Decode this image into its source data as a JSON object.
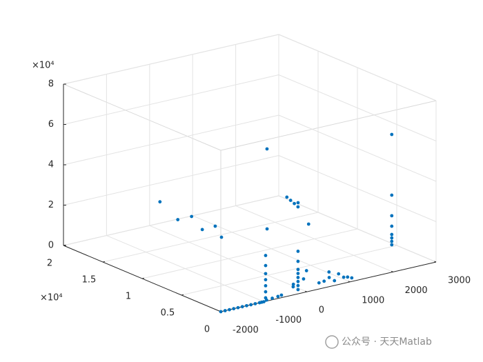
{
  "chart_data": {
    "type": "scatter3d",
    "color": "#0072bd",
    "grid": true,
    "xlim": [
      -2000,
      3000
    ],
    "xticks": [
      -2000,
      -1000,
      0,
      1000,
      2000,
      3000
    ],
    "ylim": [
      0,
      20000
    ],
    "yticks": [
      {
        "value": 0,
        "label": "0"
      },
      {
        "value": 5000,
        "label": "0.5"
      },
      {
        "value": 10000,
        "label": "1"
      },
      {
        "value": 15000,
        "label": "1.5"
      },
      {
        "value": 20000,
        "label": "2"
      }
    ],
    "y_exponent_label": "×10⁴",
    "zlim": [
      0,
      80000
    ],
    "zticks": [
      {
        "value": 0,
        "label": "0"
      },
      {
        "value": 20000,
        "label": "2"
      },
      {
        "value": 40000,
        "label": "4"
      },
      {
        "value": 60000,
        "label": "6"
      },
      {
        "value": 80000,
        "label": "8"
      }
    ],
    "z_exponent_label": "×10⁴",
    "x": [
      -2000,
      -1900,
      -1800,
      -1700,
      -1600,
      -1500,
      -1400,
      -1300,
      -1200,
      -1100,
      -1050,
      -1000,
      -900,
      -750,
      -600,
      -500,
      -835,
      -835,
      -835,
      -835,
      -835,
      -835,
      -835,
      -55,
      -55,
      -55,
      -55,
      -55,
      -55,
      -55,
      -55,
      -150,
      50,
      -100,
      100,
      810,
      700,
      900,
      1000,
      600,
      500,
      1170,
      1100,
      750,
      2950,
      2950,
      2950,
      2950,
      2950,
      2950,
      2950,
      2950,
      2895,
      2850,
      2800,
      2750,
      2900,
      2440,
      1645,
      900,
      -125,
      290,
      610,
      650,
      965,
      665
    ],
    "y": [
      0,
      0,
      0,
      0,
      0,
      0,
      0,
      0,
      0,
      0,
      0,
      0,
      200,
      300,
      400,
      500,
      680,
      680,
      680,
      680,
      680,
      680,
      680,
      830,
      830,
      830,
      830,
      830,
      830,
      830,
      830,
      900,
      700,
      1200,
      600,
      930,
      1000,
      900,
      800,
      1100,
      1200,
      700,
      850,
      1300,
      5360,
      5360,
      5360,
      5360,
      5360,
      5360,
      5360,
      5360,
      16980,
      17200,
      17400,
      17600,
      17000,
      13140,
      14070,
      10000,
      18000,
      18000,
      18000,
      16860,
      16940,
      14500
    ],
    "z": [
      0,
      0,
      0,
      0,
      0,
      0,
      0,
      0,
      0,
      0,
      0,
      0,
      0,
      0,
      0,
      0,
      0,
      3000,
      6000,
      9000,
      12000,
      16000,
      21000,
      0,
      2000,
      4000,
      6000,
      8000,
      10000,
      14000,
      19000,
      3000,
      5000,
      1000,
      9000,
      0,
      2000,
      3000,
      1000,
      500,
      0,
      0,
      500,
      4000,
      0,
      1700,
      3400,
      5100,
      9200,
      14400,
      24600,
      54700,
      0,
      1500,
      3000,
      4500,
      2000,
      0,
      0,
      50000,
      15700,
      4800,
      4800,
      0,
      0,
      0
    ]
  },
  "watermark": {
    "text": "公众号 · 天天Matlab"
  }
}
